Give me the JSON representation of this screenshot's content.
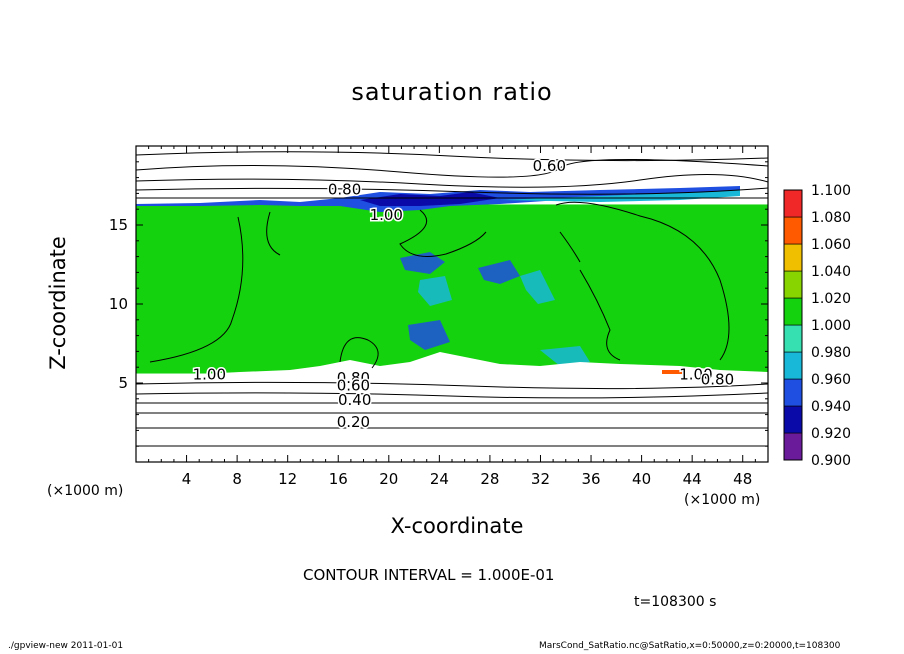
{
  "chart_data": {
    "type": "heatmap",
    "title": "saturation ratio",
    "xlabel": "X-coordinate",
    "ylabel": "Z-coordinate",
    "x_unit_label": "(×1000 m)",
    "xlim": [
      0,
      50
    ],
    "ylim": [
      0,
      20
    ],
    "x_ticks": [
      4,
      8,
      12,
      16,
      20,
      24,
      28,
      32,
      36,
      40,
      44,
      48
    ],
    "y_ticks": [
      5,
      10,
      15
    ],
    "colorbar": {
      "levels": [
        "0.900",
        "0.920",
        "0.940",
        "0.960",
        "0.980",
        "1.000",
        "1.020",
        "1.040",
        "1.060",
        "1.080",
        "1.100"
      ],
      "colors": [
        "#6a1b9a",
        "#0a0aa8",
        "#1e4fe0",
        "#18b8d8",
        "#36e0b0",
        "#14d20e",
        "#88d400",
        "#f0c000",
        "#ff5a00",
        "#f02828",
        "#f08080"
      ]
    },
    "fill_region": {
      "x": [
        0,
        50
      ],
      "z": [
        5.6,
        16.3
      ],
      "value": 1.0,
      "color": "#14d20e"
    },
    "contour_labels": [
      {
        "text": "0.60",
        "x": 32.7,
        "z": 18.7
      },
      {
        "text": "0.80",
        "x": 16.5,
        "z": 17.2
      },
      {
        "text": "1.00",
        "x": 19.8,
        "z": 15.6
      },
      {
        "text": "1.00",
        "x": 5.8,
        "z": 5.5
      },
      {
        "text": "1.00",
        "x": 44.3,
        "z": 5.5
      },
      {
        "text": "0.80",
        "x": 46.0,
        "z": 5.2
      },
      {
        "text": "0.80",
        "x": 17.2,
        "z": 5.3
      },
      {
        "text": "0.60",
        "x": 17.2,
        "z": 4.8
      },
      {
        "text": "0.40",
        "x": 17.3,
        "z": 3.9
      },
      {
        "text": "0.20",
        "x": 17.2,
        "z": 2.5
      }
    ],
    "contour_interval_text": "CONTOUR INTERVAL = 1.000E-01",
    "time_text": "t=108300 s"
  },
  "footer": {
    "left": "./gpview-new   2011-01-01",
    "right": "MarsCond_SatRatio.nc@SatRatio,x=0:50000,z=0:20000,t=108300"
  }
}
